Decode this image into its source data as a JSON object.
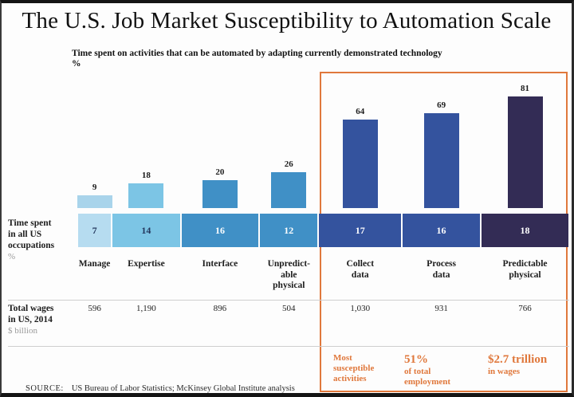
{
  "title": "The U.S. Job Market Susceptibility to Automation Scale",
  "chart_data": {
    "type": "bar",
    "title": "Time spent on activities that can be automated by adapting currently demonstrated technology",
    "unit": "%",
    "ylim": [
      0,
      100
    ],
    "grid": false,
    "categories": [
      "Manage",
      "Expertise",
      "Interface",
      "Unpredictable physical",
      "Collect data",
      "Process data",
      "Predictable physical"
    ],
    "category_lines": [
      [
        "Manage"
      ],
      [
        "Expertise"
      ],
      [
        "Interface"
      ],
      [
        "Unpredict-",
        "able",
        "physical"
      ],
      [
        "Collect",
        "data"
      ],
      [
        "Process",
        "data"
      ],
      [
        "Predictable",
        "physical"
      ]
    ],
    "series": [
      {
        "name": "Time spent on activities that can be automated (%)",
        "values": [
          9,
          18,
          20,
          26,
          64,
          69,
          81
        ]
      },
      {
        "name": "Time spent in all US occupations (%)",
        "values": [
          7,
          14,
          16,
          12,
          17,
          16,
          18
        ]
      },
      {
        "name": "Total wages in US, 2014 ($ billion)",
        "values": [
          596,
          1190,
          896,
          504,
          1030,
          931,
          766
        ]
      }
    ],
    "wage_labels": [
      "596",
      "1,190",
      "896",
      "504",
      "1,030",
      "931",
      "766"
    ],
    "bar_colors": [
      "#a9d4eb",
      "#7cc5e5",
      "#4090c6",
      "#4090c6",
      "#34539e",
      "#34539e",
      "#332c55"
    ],
    "band_colors": [
      "#b6dcf0",
      "#7cc5e5",
      "#4090c6",
      "#4090c6",
      "#34539e",
      "#34539e",
      "#332c55"
    ],
    "band_text_colors": [
      "#23365c",
      "#23365c",
      "#ffffff",
      "#ffffff",
      "#ffffff",
      "#ffffff",
      "#ffffff"
    ],
    "highlight_columns": [
      4,
      5,
      6
    ],
    "legend_position": "none"
  },
  "subtitle_line1": "Time spent on activities that can be automated by adapting currently demonstrated technology",
  "subtitle_line2": "%",
  "rows": {
    "time_spent": {
      "lines": [
        "Time spent",
        "in all US",
        "occupations"
      ],
      "unit": "%"
    },
    "wages": {
      "lines": [
        "Total wages",
        "in US, 2014"
      ],
      "unit": "$ billion"
    }
  },
  "highlight": {
    "color": "#e0783c",
    "callouts": [
      {
        "headline": "",
        "lines": [
          "Most",
          "susceptible",
          "activities"
        ]
      },
      {
        "headline": "51%",
        "lines": [
          "of total",
          "employment"
        ]
      },
      {
        "headline": "$2.7 trillion",
        "lines": [
          "in wages"
        ]
      }
    ]
  },
  "source": {
    "label": "SOURCE:",
    "text": "US Bureau of Labor Statistics; McKinsey Global Institute analysis"
  }
}
